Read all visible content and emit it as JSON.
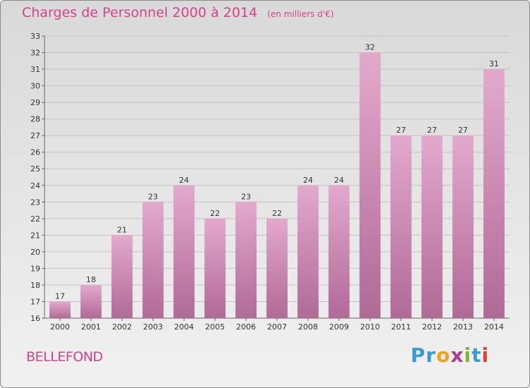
{
  "header": {
    "title": "Charges de Personnel 2000 à 2014",
    "subtitle": "(en milliers d'€)"
  },
  "footer": {
    "commune": "BELLEFOND",
    "logo": {
      "letters": [
        "P",
        "r",
        "o",
        "x",
        "i",
        "t",
        "i"
      ],
      "colors": [
        "#3a9bd8",
        "#3a9bd8",
        "#f2a11b",
        "#b03a8e",
        "#7ab82e",
        "#3a9bd8",
        "#e0452b"
      ]
    }
  },
  "chart_data": {
    "type": "bar",
    "title": "Charges de Personnel 2000 à 2014",
    "subtitle": "(en milliers d'€)",
    "categories": [
      "2000",
      "2001",
      "2002",
      "2003",
      "2004",
      "2005",
      "2006",
      "2007",
      "2008",
      "2009",
      "2010",
      "2011",
      "2012",
      "2013",
      "2014"
    ],
    "values": [
      17,
      18,
      21,
      23,
      24,
      22,
      23,
      22,
      24,
      24,
      32,
      27,
      27,
      27,
      31
    ],
    "ylim": [
      16,
      33
    ],
    "yticks": [
      16,
      17,
      18,
      19,
      20,
      21,
      22,
      23,
      24,
      25,
      26,
      27,
      28,
      29,
      30,
      31,
      32,
      33
    ],
    "grid": true,
    "colors": {
      "bar_top": "#e3a9cd",
      "bar_bottom": "#b06a96",
      "accent": "#d5428c"
    }
  }
}
